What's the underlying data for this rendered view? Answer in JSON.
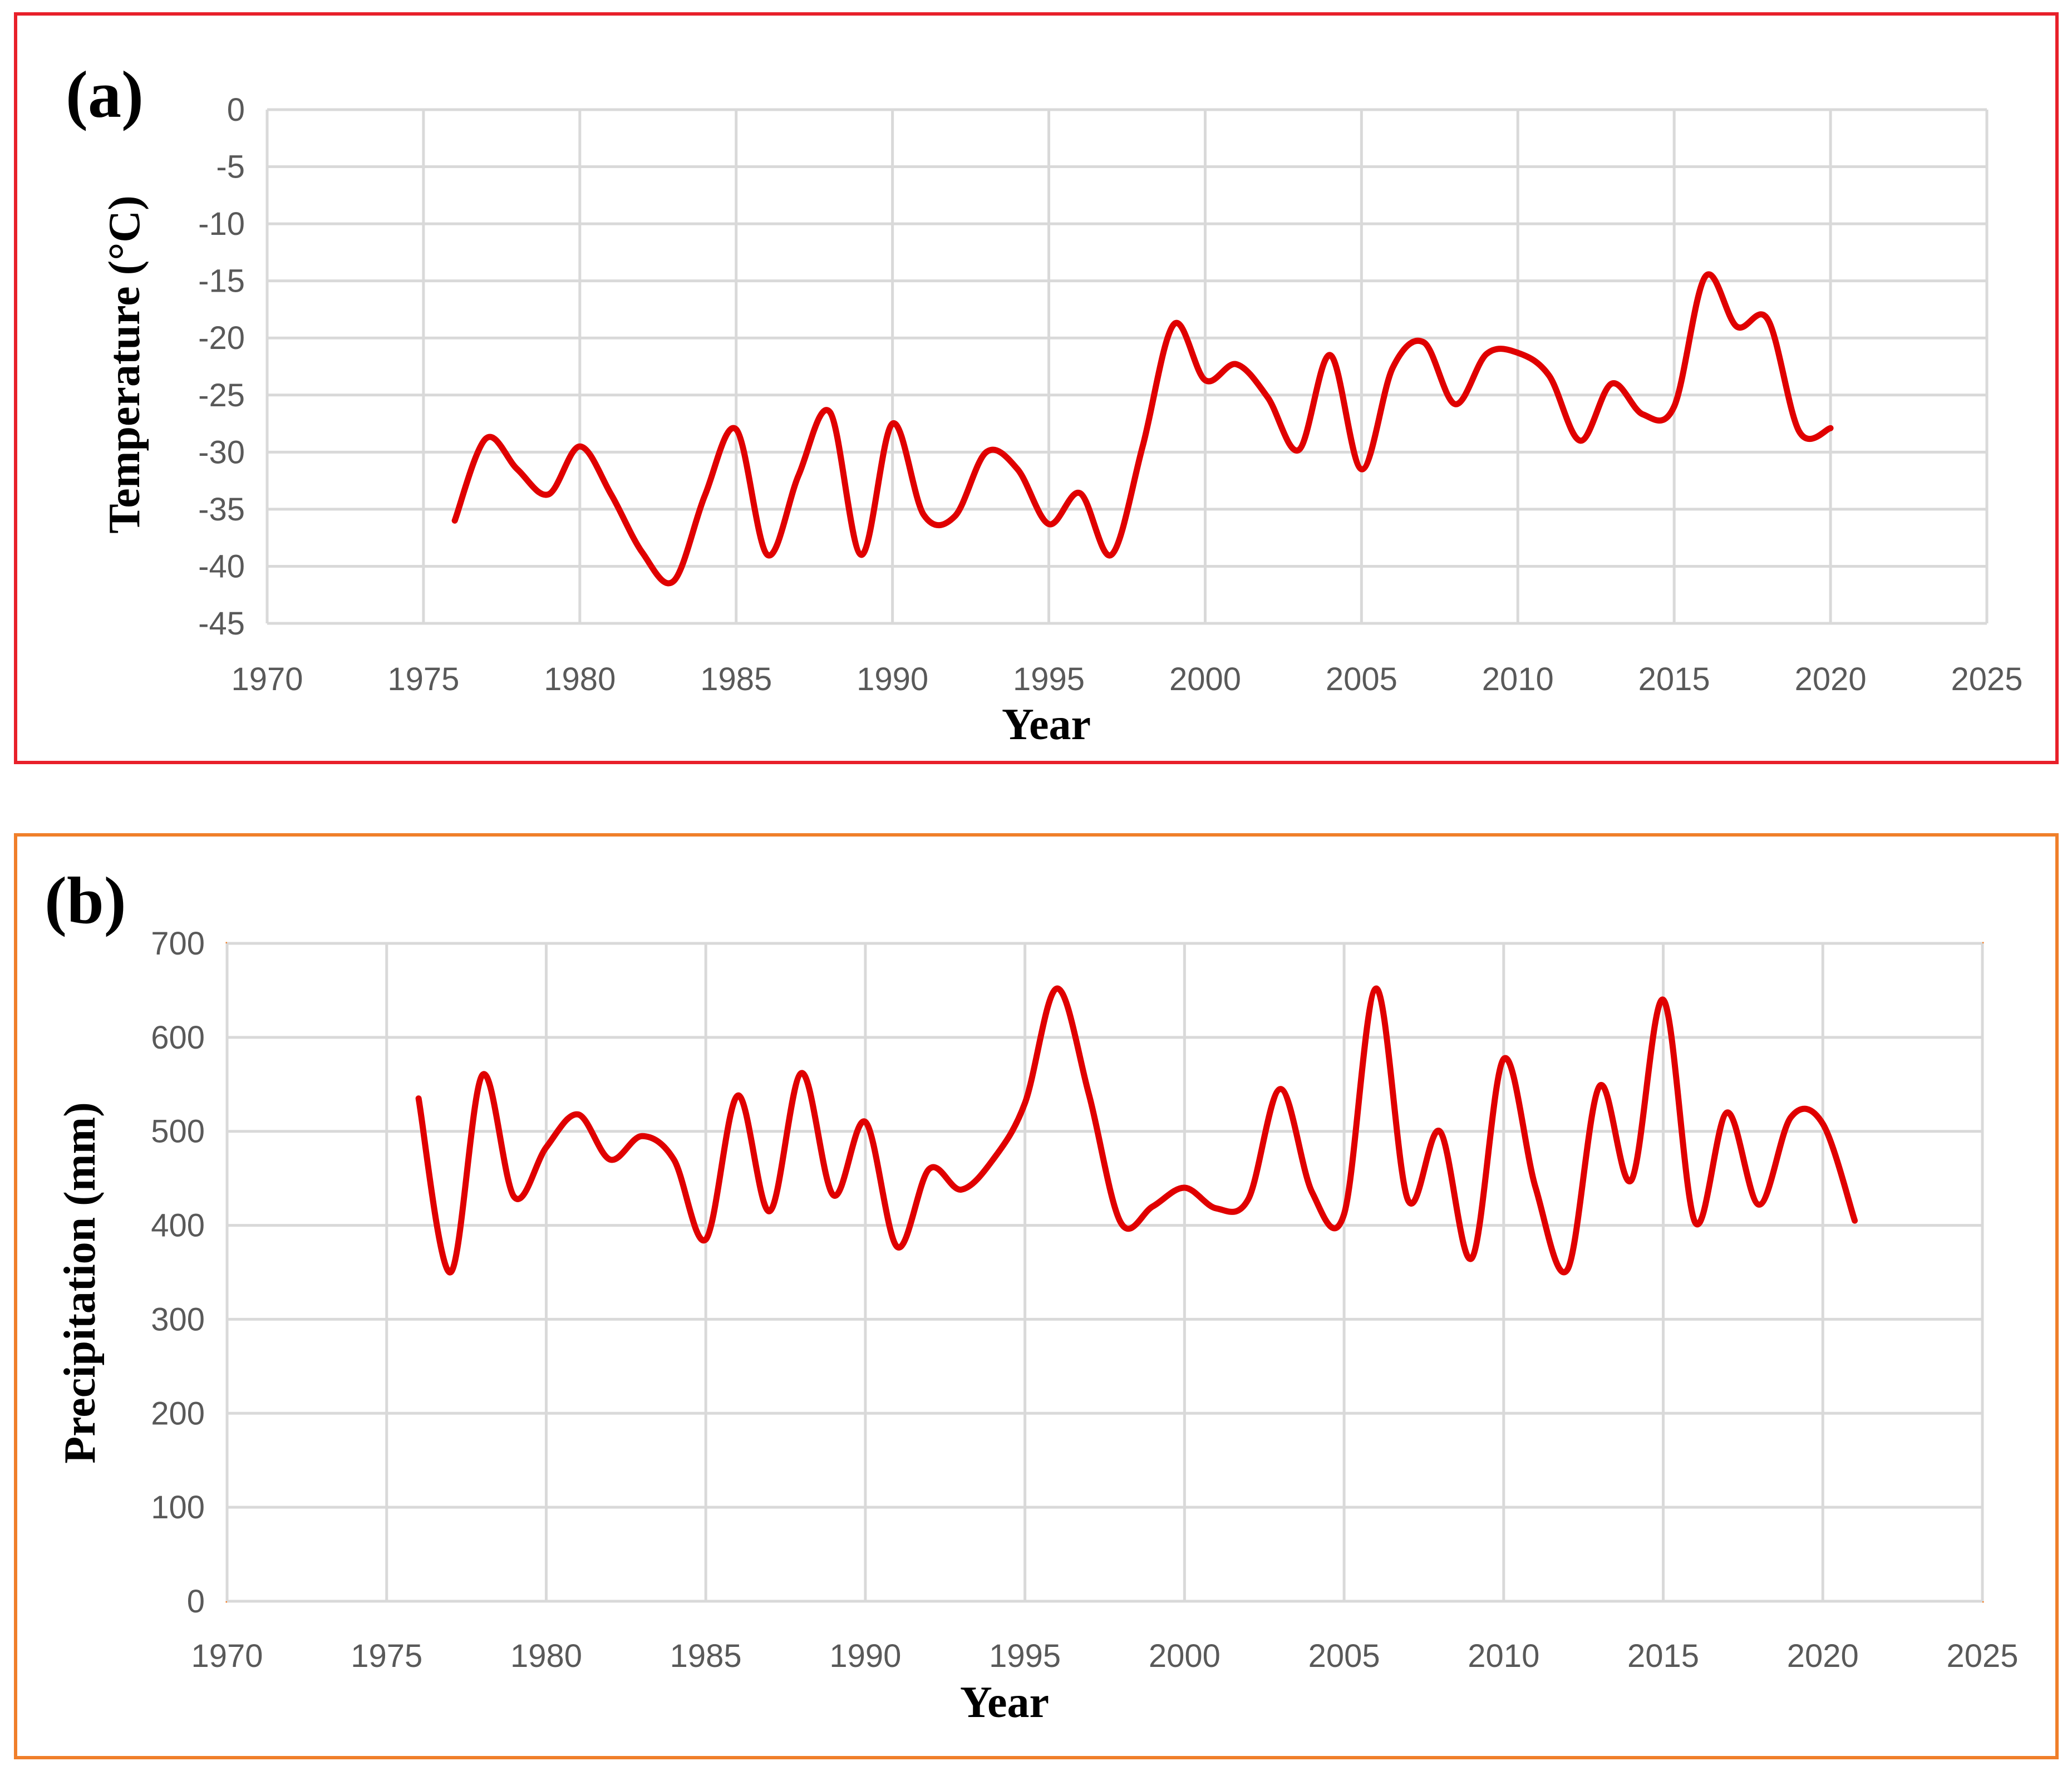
{
  "colors": {
    "series": "#e00000",
    "panel_a_border": "#e8202a",
    "panel_b_border": "#f07f2a",
    "grid": "#d9d9d9",
    "tick_text": "#595959"
  },
  "chart_data": [
    {
      "panel_label": "(a)",
      "type": "line",
      "xlabel": "Year",
      "ylabel": "Temperature (°C)",
      "xlim": [
        1970,
        2025
      ],
      "ylim": [
        -45,
        0
      ],
      "xticks": [
        1970,
        1975,
        1980,
        1985,
        1990,
        1995,
        2000,
        2005,
        2010,
        2015,
        2020,
        2025
      ],
      "yticks": [
        0,
        -5,
        -10,
        -15,
        -20,
        -25,
        -30,
        -35,
        -40,
        -45
      ],
      "grid": true,
      "series": [
        {
          "name": "Temperature",
          "x": [
            1976,
            1977,
            1978,
            1979,
            1980,
            1981,
            1982,
            1983,
            1984,
            1985,
            1986,
            1987,
            1988,
            1989,
            1990,
            1991,
            1992,
            1993,
            1994,
            1995,
            1996,
            1997,
            1998,
            1999,
            2000,
            2001,
            2002,
            2003,
            2004,
            2005,
            2006,
            2007,
            2008,
            2009,
            2010,
            2011,
            2012,
            2013,
            2014,
            2015,
            2016,
            2017,
            2018,
            2019,
            2020
          ],
          "values": [
            -36,
            -28.8,
            -31.5,
            -33.7,
            -29.5,
            -33.7,
            -38.8,
            -41.3,
            -33.8,
            -28,
            -39,
            -32,
            -26.5,
            -39,
            -27.5,
            -35.5,
            -35.6,
            -30,
            -31.5,
            -36.3,
            -33.6,
            -39,
            -29.5,
            -18.8,
            -23.7,
            -22.3,
            -25.2,
            -29.8,
            -21.5,
            -31.5,
            -22.6,
            -20.4,
            -25.8,
            -21.4,
            -21.3,
            -23.3,
            -29,
            -24,
            -26.7,
            -26,
            -14.6,
            -19,
            -18.4,
            -28.2,
            -27.9
          ]
        }
      ]
    },
    {
      "panel_label": "(b)",
      "type": "line",
      "xlabel": "Year",
      "ylabel": "Precipitation (mm)",
      "xlim": [
        1970,
        2025
      ],
      "ylim": [
        0,
        700
      ],
      "xticks": [
        1970,
        1975,
        1980,
        1985,
        1990,
        1995,
        2000,
        2005,
        2010,
        2015,
        2020,
        2025
      ],
      "yticks": [
        700,
        600,
        500,
        400,
        300,
        200,
        100,
        0
      ],
      "grid": true,
      "series": [
        {
          "name": "Precipitation",
          "x": [
            1976,
            1977,
            1978,
            1979,
            1980,
            1981,
            1982,
            1983,
            1984,
            1985,
            1986,
            1987,
            1988,
            1989,
            1990,
            1991,
            1992,
            1993,
            1994,
            1995,
            1996,
            1997,
            1998,
            1999,
            2000,
            2001,
            2002,
            2003,
            2004,
            2005,
            2006,
            2007,
            2008,
            2009,
            2010,
            2011,
            2012,
            2013,
            2014,
            2015,
            2016,
            2017,
            2018,
            2019,
            2020,
            2021
          ],
          "values": [
            535,
            350,
            560,
            430,
            483,
            518,
            470,
            495,
            470,
            385,
            538,
            415,
            562,
            432,
            510,
            377,
            460,
            438,
            470,
            530,
            652,
            540,
            403,
            420,
            440,
            418,
            428,
            545,
            435,
            412,
            652,
            427,
            500,
            365,
            577,
            440,
            353,
            548,
            448,
            640,
            403,
            520,
            422,
            515,
            508,
            405
          ]
        }
      ]
    }
  ]
}
